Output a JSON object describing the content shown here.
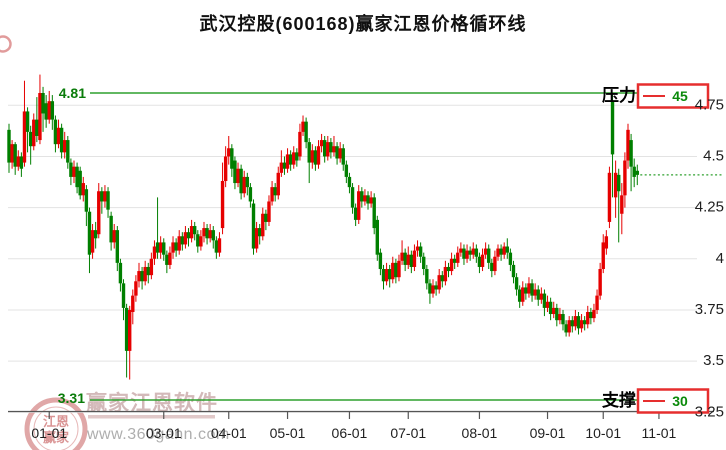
{
  "title": "武汉控股(600168)赢家江恩价格循环线",
  "colors": {
    "up": "#e60000",
    "down": "#007f00",
    "cycle_line": "#2fa02f",
    "grid": "#e3e3e3",
    "axis": "#555555",
    "box_border": "#e62e2e",
    "label_green": "#0a7c0a",
    "watermark_pink": "#ccadad",
    "watermark_gray": "#a6a6a6",
    "seal_red": "#c25050"
  },
  "resistance": {
    "price_label": "4.81",
    "price": 4.81,
    "name": "压力",
    "value": "45"
  },
  "support": {
    "price_label": "3.31",
    "price": 3.31,
    "name": "支撑",
    "value": "30"
  },
  "watermark": {
    "brand": "赢家江恩软件",
    "url": "www.360gann.com",
    "seal_line1": "江恩",
    "seal_line2": "赢家"
  },
  "chart_data": {
    "type": "candlestick",
    "title": "武汉控股(600168)赢家江恩价格循环线",
    "ylim": [
      3.25,
      4.9
    ],
    "grid": true,
    "resistance_level": 4.81,
    "support_level": 3.31,
    "last_close": 4.41,
    "y_ticks": [
      {
        "label": "4.75",
        "price": 4.75
      },
      {
        "label": "4.5",
        "price": 4.5
      },
      {
        "label": "4.25",
        "price": 4.25
      },
      {
        "label": "4",
        "price": 4.0
      },
      {
        "label": "3.75",
        "price": 3.75
      },
      {
        "label": "3.5",
        "price": 3.5
      },
      {
        "label": "3.25",
        "price": 3.25
      }
    ],
    "x_ticks": [
      {
        "label": "01-01",
        "index": 13
      },
      {
        "label": "03-01",
        "index": 50
      },
      {
        "label": "04-01",
        "index": 71
      },
      {
        "label": "05-01",
        "index": 90
      },
      {
        "label": "06-01",
        "index": 110
      },
      {
        "label": "07-01",
        "index": 129
      },
      {
        "label": "08-01",
        "index": 152
      },
      {
        "label": "09-01",
        "index": 174
      },
      {
        "label": "10-01",
        "index": 192
      },
      {
        "label": "11-01",
        "index": 210
      }
    ],
    "candles": [
      [
        4.63,
        4.47,
        4.66,
        4.42
      ],
      [
        4.47,
        4.56,
        4.58,
        4.44
      ],
      [
        4.56,
        4.45,
        4.57,
        4.41
      ],
      [
        4.45,
        4.5,
        4.53,
        4.43
      ],
      [
        4.5,
        4.44,
        4.52,
        4.4
      ],
      [
        4.47,
        4.72,
        4.87,
        4.45
      ],
      [
        4.72,
        4.62,
        4.74,
        4.52
      ],
      [
        4.62,
        4.55,
        4.65,
        4.46
      ],
      [
        4.55,
        4.68,
        4.71,
        4.53
      ],
      [
        4.68,
        4.6,
        4.79,
        4.57
      ],
      [
        4.58,
        4.81,
        4.9,
        4.56
      ],
      [
        4.81,
        4.71,
        4.84,
        4.62
      ],
      [
        4.76,
        4.68,
        4.8,
        4.64
      ],
      [
        4.68,
        4.77,
        4.82,
        4.66
      ],
      [
        4.77,
        4.68,
        4.8,
        4.63
      ],
      [
        4.68,
        4.56,
        4.7,
        4.52
      ],
      [
        4.56,
        4.64,
        4.68,
        4.54
      ],
      [
        4.64,
        4.52,
        4.66,
        4.49
      ],
      [
        4.52,
        4.58,
        4.62,
        4.49
      ],
      [
        4.58,
        4.47,
        4.6,
        4.44
      ],
      [
        4.47,
        4.4,
        4.49,
        4.36
      ],
      [
        4.4,
        4.45,
        4.48,
        4.37
      ],
      [
        4.45,
        4.35,
        4.47,
        4.32
      ],
      [
        4.43,
        4.31,
        4.45,
        4.29
      ],
      [
        4.31,
        4.37,
        4.4,
        4.28
      ],
      [
        4.34,
        4.23,
        4.36,
        4.16
      ],
      [
        4.23,
        4.02,
        4.25,
        3.93
      ],
      [
        4.03,
        4.14,
        4.17,
        4.0
      ],
      [
        4.14,
        4.1,
        4.18,
        4.05
      ],
      [
        4.12,
        4.33,
        4.37,
        4.1
      ],
      [
        4.33,
        4.28,
        4.35,
        4.22
      ],
      [
        4.28,
        4.33,
        4.36,
        4.25
      ],
      [
        4.33,
        4.24,
        4.35,
        4.2
      ],
      [
        4.21,
        4.08,
        4.23,
        4.04
      ],
      [
        4.08,
        4.14,
        4.17,
        4.05
      ],
      [
        4.14,
        3.98,
        4.16,
        3.94
      ],
      [
        3.98,
        3.88,
        4.0,
        3.84
      ],
      [
        3.88,
        3.76,
        3.9,
        3.7
      ],
      [
        3.76,
        3.55,
        3.78,
        3.42
      ],
      [
        3.55,
        3.75,
        3.77,
        3.41
      ],
      [
        3.74,
        3.82,
        3.85,
        3.68
      ],
      [
        3.82,
        3.89,
        3.92,
        3.79
      ],
      [
        3.89,
        3.94,
        3.98,
        3.86
      ],
      [
        3.94,
        3.89,
        3.96,
        3.85
      ],
      [
        3.89,
        3.96,
        3.99,
        3.87
      ],
      [
        3.96,
        3.92,
        3.98,
        3.88
      ],
      [
        3.92,
        4.0,
        4.03,
        3.9
      ],
      [
        4.0,
        4.06,
        4.09,
        3.97
      ],
      [
        4.08,
        4.03,
        4.3,
        4.0
      ],
      [
        4.03,
        4.08,
        4.11,
        4.0
      ],
      [
        4.08,
        4.02,
        4.1,
        3.99
      ],
      [
        4.02,
        3.97,
        4.04,
        3.93
      ],
      [
        3.97,
        4.03,
        4.06,
        3.95
      ],
      [
        4.03,
        4.08,
        4.11,
        4.0
      ],
      [
        4.08,
        4.04,
        4.1,
        4.01
      ],
      [
        4.04,
        4.11,
        4.14,
        4.02
      ],
      [
        4.11,
        4.07,
        4.13,
        4.04
      ],
      [
        4.07,
        4.13,
        4.16,
        4.05
      ],
      [
        4.13,
        4.1,
        4.15,
        4.06
      ],
      [
        4.1,
        4.16,
        4.19,
        4.08
      ],
      [
        4.16,
        4.12,
        4.18,
        4.09
      ],
      [
        4.12,
        4.06,
        4.14,
        4.03
      ],
      [
        4.06,
        4.11,
        4.14,
        4.04
      ],
      [
        4.11,
        4.15,
        4.18,
        4.08
      ],
      [
        4.15,
        4.1,
        4.17,
        4.07
      ],
      [
        4.1,
        4.14,
        4.17,
        4.08
      ],
      [
        4.14,
        4.09,
        4.16,
        4.05
      ],
      [
        4.09,
        4.03,
        4.11,
        4.0
      ],
      [
        4.03,
        4.1,
        4.13,
        4.01
      ],
      [
        4.15,
        4.38,
        4.47,
        4.12
      ],
      [
        4.38,
        4.5,
        4.55,
        4.35
      ],
      [
        4.5,
        4.54,
        4.6,
        4.46
      ],
      [
        4.54,
        4.44,
        4.56,
        4.4
      ],
      [
        4.48,
        4.37,
        4.5,
        4.34
      ],
      [
        4.37,
        4.44,
        4.47,
        4.35
      ],
      [
        4.44,
        4.32,
        4.46,
        4.29
      ],
      [
        4.32,
        4.4,
        4.43,
        4.3
      ],
      [
        4.4,
        4.35,
        4.42,
        4.31
      ],
      [
        4.35,
        4.28,
        4.37,
        4.25
      ],
      [
        4.27,
        4.05,
        4.29,
        4.02
      ],
      [
        4.05,
        4.15,
        4.18,
        4.03
      ],
      [
        4.15,
        4.11,
        4.17,
        4.07
      ],
      [
        4.11,
        4.22,
        4.25,
        4.09
      ],
      [
        4.22,
        4.18,
        4.24,
        4.14
      ],
      [
        4.18,
        4.28,
        4.31,
        4.16
      ],
      [
        4.28,
        4.35,
        4.38,
        4.26
      ],
      [
        4.35,
        4.31,
        4.37,
        4.28
      ],
      [
        4.31,
        4.42,
        4.45,
        4.29
      ],
      [
        4.42,
        4.47,
        4.53,
        4.4
      ],
      [
        4.47,
        4.44,
        4.5,
        4.41
      ],
      [
        4.44,
        4.51,
        4.54,
        4.42
      ],
      [
        4.51,
        4.46,
        4.53,
        4.43
      ],
      [
        4.46,
        4.52,
        4.55,
        4.44
      ],
      [
        4.52,
        4.48,
        4.54,
        4.45
      ],
      [
        4.5,
        4.62,
        4.66,
        4.48
      ],
      [
        4.62,
        4.67,
        4.7,
        4.6
      ],
      [
        4.67,
        4.57,
        4.69,
        4.54
      ],
      [
        4.57,
        4.47,
        4.59,
        4.37
      ],
      [
        4.47,
        4.53,
        4.56,
        4.44
      ],
      [
        4.53,
        4.46,
        4.55,
        4.43
      ],
      [
        4.46,
        4.55,
        4.58,
        4.44
      ],
      [
        4.55,
        4.58,
        4.61,
        4.52
      ],
      [
        4.58,
        4.5,
        4.6,
        4.47
      ],
      [
        4.5,
        4.57,
        4.6,
        4.48
      ],
      [
        4.57,
        4.52,
        4.59,
        4.49
      ],
      [
        4.52,
        4.55,
        4.6,
        4.5
      ],
      [
        4.55,
        4.49,
        4.57,
        4.46
      ],
      [
        4.49,
        4.54,
        4.57,
        4.47
      ],
      [
        4.54,
        4.46,
        4.56,
        4.43
      ],
      [
        4.46,
        4.4,
        4.48,
        4.37
      ],
      [
        4.4,
        4.35,
        4.42,
        4.32
      ],
      [
        4.35,
        4.25,
        4.37,
        4.22
      ],
      [
        4.25,
        4.19,
        4.27,
        4.16
      ],
      [
        4.19,
        4.33,
        4.36,
        4.17
      ],
      [
        4.33,
        4.28,
        4.35,
        4.25
      ],
      [
        4.28,
        4.31,
        4.34,
        4.26
      ],
      [
        4.31,
        4.27,
        4.33,
        4.24
      ],
      [
        4.27,
        4.3,
        4.33,
        4.25
      ],
      [
        4.3,
        4.15,
        4.32,
        4.12
      ],
      [
        4.19,
        4.02,
        4.21,
        3.99
      ],
      [
        4.03,
        3.95,
        4.05,
        3.92
      ],
      [
        3.95,
        3.89,
        3.97,
        3.85
      ],
      [
        3.89,
        3.95,
        3.98,
        3.87
      ],
      [
        3.95,
        3.9,
        3.97,
        3.86
      ],
      [
        3.9,
        3.98,
        4.01,
        3.88
      ],
      [
        3.98,
        3.91,
        4.0,
        3.88
      ],
      [
        3.91,
        3.99,
        4.02,
        3.89
      ],
      [
        3.99,
        4.03,
        4.09,
        3.97
      ],
      [
        4.03,
        3.97,
        4.05,
        3.94
      ],
      [
        3.97,
        4.02,
        4.06,
        3.95
      ],
      [
        4.02,
        3.96,
        4.04,
        3.93
      ],
      [
        3.96,
        4.04,
        4.07,
        3.94
      ],
      [
        4.04,
        4.06,
        4.09,
        4.01
      ],
      [
        4.06,
        4.01,
        4.08,
        3.98
      ],
      [
        4.01,
        3.95,
        4.03,
        3.92
      ],
      [
        3.95,
        3.88,
        3.97,
        3.85
      ],
      [
        3.88,
        3.83,
        3.9,
        3.78
      ],
      [
        3.83,
        3.87,
        3.9,
        3.81
      ],
      [
        3.87,
        3.85,
        3.89,
        3.82
      ],
      [
        3.85,
        3.92,
        3.95,
        3.83
      ],
      [
        3.92,
        3.89,
        3.94,
        3.86
      ],
      [
        3.89,
        3.96,
        3.99,
        3.87
      ],
      [
        3.96,
        3.94,
        3.98,
        3.91
      ],
      [
        3.94,
        4.0,
        4.03,
        3.92
      ],
      [
        4.0,
        3.98,
        4.02,
        3.95
      ],
      [
        3.98,
        4.03,
        4.06,
        3.96
      ],
      [
        4.03,
        4.05,
        4.08,
        4.01
      ],
      [
        4.05,
        4.0,
        4.07,
        3.97
      ],
      [
        4.0,
        4.04,
        4.07,
        3.98
      ],
      [
        4.04,
        4.02,
        4.06,
        3.99
      ],
      [
        4.02,
        4.05,
        4.08,
        4.0
      ],
      [
        4.05,
        4.01,
        4.07,
        3.98
      ],
      [
        4.01,
        3.96,
        4.03,
        3.93
      ],
      [
        3.96,
        4.02,
        4.05,
        3.94
      ],
      [
        4.02,
        4.05,
        4.08,
        4.0
      ],
      [
        4.05,
        3.98,
        4.07,
        3.95
      ],
      [
        3.98,
        3.94,
        4.0,
        3.91
      ],
      [
        3.94,
        4.01,
        4.04,
        3.92
      ],
      [
        4.01,
        4.05,
        4.07,
        3.99
      ],
      [
        4.05,
        4.02,
        4.07,
        3.99
      ],
      [
        4.02,
        4.06,
        4.08,
        4.0
      ],
      [
        4.06,
        4.03,
        4.1,
        4.0
      ],
      [
        4.03,
        3.97,
        4.05,
        3.94
      ],
      [
        3.97,
        3.91,
        3.99,
        3.88
      ],
      [
        3.91,
        3.85,
        3.93,
        3.82
      ],
      [
        3.85,
        3.79,
        3.87,
        3.76
      ],
      [
        3.79,
        3.86,
        3.89,
        3.77
      ],
      [
        3.86,
        3.83,
        3.88,
        3.8
      ],
      [
        3.83,
        3.88,
        3.91,
        3.81
      ],
      [
        3.88,
        3.82,
        3.9,
        3.79
      ],
      [
        3.82,
        3.85,
        3.88,
        3.8
      ],
      [
        3.85,
        3.8,
        3.87,
        3.77
      ],
      [
        3.8,
        3.83,
        3.86,
        3.78
      ],
      [
        3.83,
        3.76,
        3.85,
        3.72
      ],
      [
        3.76,
        3.79,
        3.82,
        3.74
      ],
      [
        3.79,
        3.73,
        3.81,
        3.7
      ],
      [
        3.73,
        3.76,
        3.79,
        3.71
      ],
      [
        3.76,
        3.7,
        3.78,
        3.67
      ],
      [
        3.7,
        3.73,
        3.76,
        3.68
      ],
      [
        3.73,
        3.68,
        3.75,
        3.65
      ],
      [
        3.68,
        3.64,
        3.7,
        3.62
      ],
      [
        3.64,
        3.7,
        3.72,
        3.62
      ],
      [
        3.7,
        3.67,
        3.72,
        3.64
      ],
      [
        3.67,
        3.72,
        3.75,
        3.65
      ],
      [
        3.72,
        3.66,
        3.74,
        3.63
      ],
      [
        3.66,
        3.7,
        3.73,
        3.64
      ],
      [
        3.7,
        3.68,
        3.72,
        3.65
      ],
      [
        3.68,
        3.74,
        3.77,
        3.66
      ],
      [
        3.74,
        3.71,
        3.76,
        3.68
      ],
      [
        3.71,
        3.75,
        3.78,
        3.69
      ],
      [
        3.75,
        3.82,
        3.85,
        3.73
      ],
      [
        3.82,
        3.95,
        3.98,
        3.8
      ],
      [
        3.95,
        4.08,
        4.12,
        3.93
      ],
      [
        4.05,
        4.11,
        4.14,
        4.02
      ],
      [
        4.18,
        4.42,
        4.45,
        4.15
      ],
      [
        4.77,
        4.51,
        4.81,
        4.3
      ],
      [
        4.3,
        4.42,
        4.48,
        4.2
      ],
      [
        4.41,
        4.33,
        4.44,
        4.08
      ],
      [
        4.22,
        4.31,
        4.37,
        4.12
      ],
      [
        4.31,
        4.48,
        4.52,
        4.25
      ],
      [
        4.48,
        4.63,
        4.66,
        4.44
      ],
      [
        4.58,
        4.45,
        4.61,
        4.33
      ],
      [
        4.45,
        4.4,
        4.49,
        4.35
      ],
      [
        4.43,
        4.41,
        4.46,
        4.36
      ]
    ]
  }
}
